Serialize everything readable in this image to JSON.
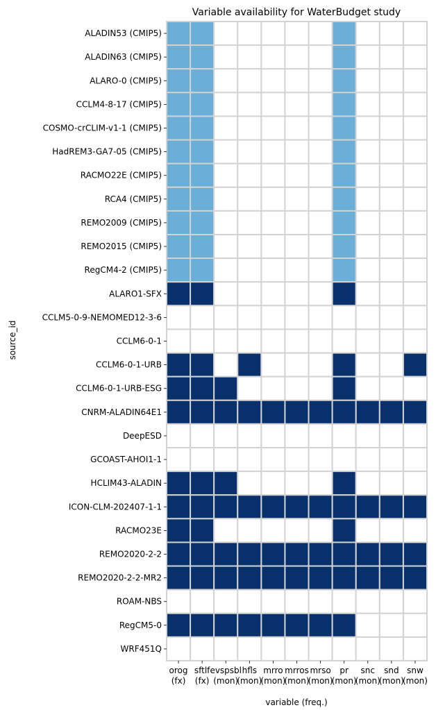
{
  "chart_data": {
    "type": "heatmap",
    "title": "Variable availability for WaterBudget study",
    "xlabel": "variable (freq.)",
    "ylabel": "source_id",
    "columns": [
      {
        "name": "orog",
        "freq": "(fx)"
      },
      {
        "name": "sftlf",
        "freq": "(fx)"
      },
      {
        "name": "evspsbl",
        "freq": "(mon)"
      },
      {
        "name": "hfls",
        "freq": "(mon)"
      },
      {
        "name": "mrro",
        "freq": "(mon)"
      },
      {
        "name": "mrros",
        "freq": "(mon)"
      },
      {
        "name": "mrso",
        "freq": "(mon)"
      },
      {
        "name": "pr",
        "freq": "(mon)"
      },
      {
        "name": "snc",
        "freq": "(mon)"
      },
      {
        "name": "snd",
        "freq": "(mon)"
      },
      {
        "name": "snw",
        "freq": "(mon)"
      }
    ],
    "rows": [
      "ALADIN53 (CMIP5)",
      "ALADIN63 (CMIP5)",
      "ALARO-0 (CMIP5)",
      "CCLM4-8-17 (CMIP5)",
      "COSMO-crCLIM-v1-1 (CMIP5)",
      "HadREM3-GA7-05 (CMIP5)",
      "RACMO22E (CMIP5)",
      "RCA4 (CMIP5)",
      "REMO2009 (CMIP5)",
      "REMO2015 (CMIP5)",
      "RegCM4-2 (CMIP5)",
      "ALARO1-SFX",
      "CCLM5-0-9-NEMOMED12-3-6",
      "CCLM6-0-1",
      "CCLM6-0-1-URB",
      "CCLM6-0-1-URB-ESG",
      "CNRM-ALADIN64E1",
      "DeepESD",
      "GCOAST-AHOI1-1",
      "HCLIM43-ALADIN",
      "ICON-CLM-202407-1-1",
      "RACMO23E",
      "REMO2020-2-2",
      "REMO2020-2-2-MR2",
      "ROAM-NBS",
      "RegCM5-0",
      "WRF451Q"
    ],
    "values": [
      [
        1,
        1,
        0,
        0,
        0,
        0,
        0,
        1,
        0,
        0,
        0
      ],
      [
        1,
        1,
        0,
        0,
        0,
        0,
        0,
        1,
        0,
        0,
        0
      ],
      [
        1,
        1,
        0,
        0,
        0,
        0,
        0,
        1,
        0,
        0,
        0
      ],
      [
        1,
        1,
        0,
        0,
        0,
        0,
        0,
        1,
        0,
        0,
        0
      ],
      [
        1,
        1,
        0,
        0,
        0,
        0,
        0,
        1,
        0,
        0,
        0
      ],
      [
        1,
        1,
        0,
        0,
        0,
        0,
        0,
        1,
        0,
        0,
        0
      ],
      [
        1,
        1,
        0,
        0,
        0,
        0,
        0,
        1,
        0,
        0,
        0
      ],
      [
        1,
        1,
        0,
        0,
        0,
        0,
        0,
        1,
        0,
        0,
        0
      ],
      [
        1,
        1,
        0,
        0,
        0,
        0,
        0,
        1,
        0,
        0,
        0
      ],
      [
        1,
        1,
        0,
        0,
        0,
        0,
        0,
        1,
        0,
        0,
        0
      ],
      [
        1,
        1,
        0,
        0,
        0,
        0,
        0,
        1,
        0,
        0,
        0
      ],
      [
        2,
        2,
        0,
        0,
        0,
        0,
        0,
        2,
        0,
        0,
        0
      ],
      [
        0,
        0,
        0,
        0,
        0,
        0,
        0,
        0,
        0,
        0,
        0
      ],
      [
        0,
        0,
        0,
        0,
        0,
        0,
        0,
        0,
        0,
        0,
        0
      ],
      [
        2,
        2,
        0,
        2,
        0,
        0,
        0,
        2,
        0,
        0,
        2
      ],
      [
        2,
        2,
        2,
        0,
        0,
        0,
        0,
        2,
        0,
        0,
        0
      ],
      [
        2,
        2,
        2,
        2,
        2,
        2,
        2,
        2,
        2,
        2,
        2
      ],
      [
        0,
        0,
        0,
        0,
        0,
        0,
        0,
        0,
        0,
        0,
        0
      ],
      [
        0,
        0,
        0,
        0,
        0,
        0,
        0,
        0,
        0,
        0,
        0
      ],
      [
        2,
        2,
        2,
        0,
        0,
        0,
        0,
        2,
        0,
        0,
        0
      ],
      [
        2,
        2,
        2,
        2,
        2,
        2,
        2,
        2,
        2,
        2,
        2
      ],
      [
        2,
        2,
        0,
        0,
        0,
        0,
        0,
        2,
        0,
        0,
        0
      ],
      [
        2,
        2,
        2,
        2,
        2,
        2,
        2,
        2,
        2,
        2,
        2
      ],
      [
        2,
        2,
        2,
        2,
        2,
        2,
        2,
        2,
        2,
        2,
        2
      ],
      [
        0,
        0,
        0,
        0,
        0,
        0,
        0,
        0,
        0,
        0,
        0
      ],
      [
        2,
        2,
        2,
        2,
        2,
        2,
        2,
        2,
        0,
        0,
        0
      ],
      [
        0,
        0,
        0,
        0,
        0,
        0,
        0,
        0,
        0,
        0,
        0
      ]
    ],
    "colors": {
      "0": "#ffffff",
      "1": "#6baed6",
      "2": "#08306b",
      "grid": "#d3d3d3"
    },
    "grid": true,
    "legend": "none"
  }
}
